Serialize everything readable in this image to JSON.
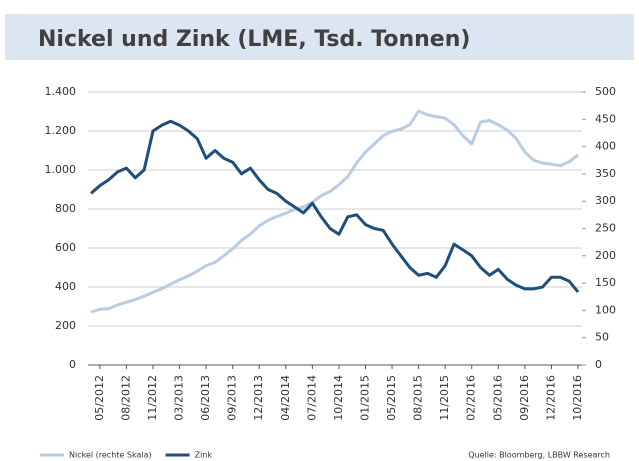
{
  "chart_data": {
    "type": "line",
    "title": "Nickel und Zink (LME, Tsd. Tonnen)",
    "categories": [
      null,
      "05/2012",
      null,
      null,
      "08/2012",
      null,
      null,
      "11/2012",
      null,
      null,
      "03/2013",
      null,
      null,
      "06/2013",
      null,
      null,
      "09/2013",
      null,
      null,
      "12/2013",
      null,
      null,
      "04/2014",
      null,
      null,
      "07/2014",
      null,
      null,
      "10/2014",
      null,
      null,
      "01/2015",
      null,
      null,
      "05/2015",
      null,
      null,
      "08/2015",
      null,
      null,
      "11/2015",
      null,
      null,
      "02/2016",
      null,
      null,
      "05/2016",
      null,
      null,
      "09/2016",
      null,
      null,
      "12/2016",
      null,
      null,
      "10/2016"
    ],
    "series": [
      {
        "name": "Nickel (rechte Skala)",
        "color": "#b8cce4",
        "axis": "y2",
        "values": [
          97,
          102,
          103,
          110,
          115,
          120,
          126,
          133,
          140,
          148,
          156,
          163,
          172,
          182,
          188,
          200,
          213,
          228,
          240,
          255,
          265,
          272,
          278,
          285,
          290,
          298,
          310,
          318,
          330,
          345,
          370,
          390,
          405,
          420,
          428,
          432,
          440,
          465,
          458,
          455,
          452,
          440,
          420,
          405,
          445,
          448,
          440,
          430,
          415,
          390,
          375,
          370,
          368,
          365,
          372,
          385
        ]
      },
      {
        "name": "Zink",
        "color": "#1f4e79",
        "values": [
          880,
          920,
          950,
          990,
          1010,
          960,
          1000,
          1200,
          1230,
          1250,
          1230,
          1200,
          1160,
          1060,
          1100,
          1060,
          1040,
          980,
          1010,
          950,
          900,
          880,
          840,
          810,
          780,
          830,
          760,
          700,
          670,
          760,
          770,
          720,
          700,
          690,
          620,
          560,
          500,
          460,
          470,
          450,
          510,
          620,
          590,
          560,
          500,
          460,
          490,
          440,
          410,
          390,
          390,
          400,
          450,
          450,
          430,
          375
        ]
      }
    ],
    "ylim": [
      0,
      1400
    ],
    "yticks": [
      0,
      200,
      400,
      600,
      800,
      {
        "value": 1000,
        "label": "1.000"
      },
      {
        "value": 1200,
        "label": "1.200"
      },
      {
        "value": 1400,
        "label": "1.400"
      }
    ],
    "y2lim": [
      0,
      500
    ],
    "y2ticks": [
      0,
      50,
      100,
      150,
      200,
      250,
      300,
      350,
      400,
      450,
      500
    ],
    "grid": true,
    "source": "Quelle: Bloomberg, LBBW Research"
  }
}
